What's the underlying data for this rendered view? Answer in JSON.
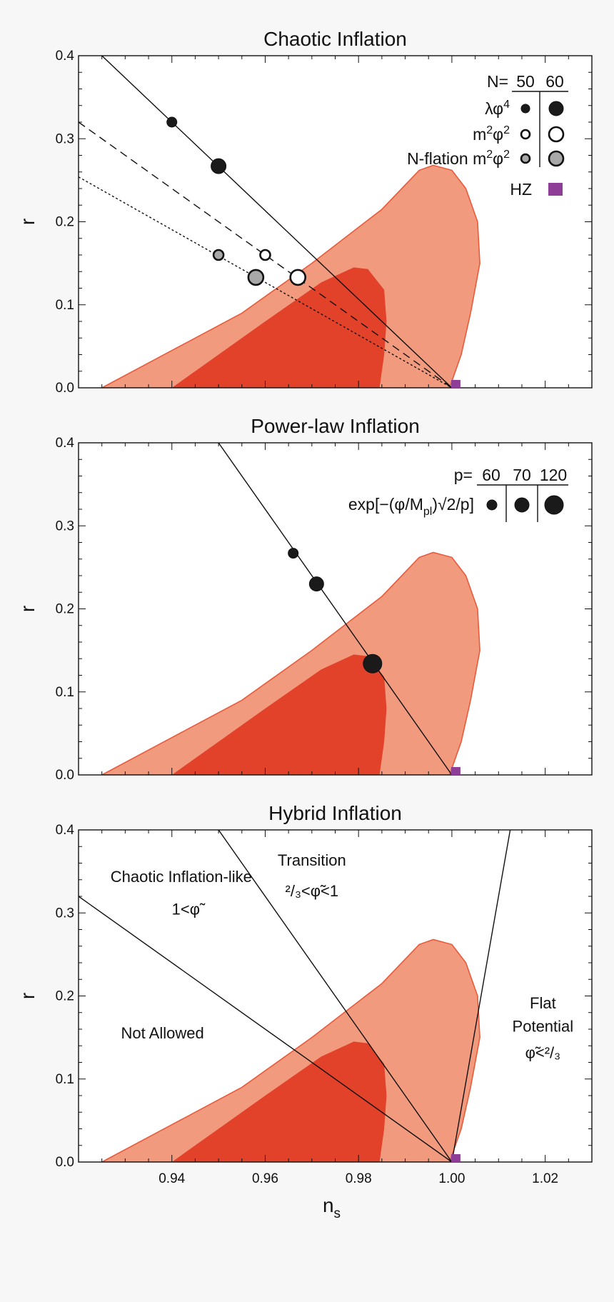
{
  "chart_data": [
    {
      "type": "scatter",
      "title": "Chaotic Inflation",
      "ylabel": "r",
      "xlim": [
        0.92,
        1.03
      ],
      "ylim": [
        0,
        0.4
      ],
      "yticks": [
        "0.0",
        "0.1",
        "0.2",
        "0.3",
        "0.4"
      ],
      "regions": [
        {
          "level": "outer",
          "color": "#f29a7e"
        },
        {
          "level": "inner",
          "color": "#e2412a"
        }
      ],
      "lines": [
        {
          "style": "solid",
          "points": [
            [
              0.925,
              0.4
            ],
            [
              1.0,
              0.0
            ]
          ]
        },
        {
          "style": "dashed",
          "points": [
            [
              0.92,
              0.32
            ],
            [
              1.0,
              0.0
            ]
          ]
        },
        {
          "style": "dotted",
          "points": [
            [
              0.92,
              0.254
            ],
            [
              1.0,
              0.0
            ]
          ]
        }
      ],
      "legend": {
        "header": "N=",
        "columns": [
          "50",
          "60"
        ],
        "rows": [
          {
            "label": "λφ",
            "sup": "4",
            "style": "black"
          },
          {
            "label": "m",
            "sup": "2",
            "label2": "φ",
            "sup2": "2",
            "style": "white"
          },
          {
            "label": "N-flation m",
            "sup": "2",
            "label2": "φ",
            "sup2": "2",
            "style": "gray"
          }
        ],
        "hz_label": "HZ"
      },
      "points": [
        {
          "model": "λφ4",
          "N": 50,
          "x": 0.94,
          "y": 0.32,
          "style": "black"
        },
        {
          "model": "λφ4",
          "N": 60,
          "x": 0.95,
          "y": 0.267,
          "style": "black"
        },
        {
          "model": "m2φ2",
          "N": 50,
          "x": 0.96,
          "y": 0.16,
          "style": "white"
        },
        {
          "model": "m2φ2",
          "N": 60,
          "x": 0.967,
          "y": 0.133,
          "style": "white"
        },
        {
          "model": "N-flation m2φ2",
          "N": 50,
          "x": 0.95,
          "y": 0.16,
          "style": "gray"
        },
        {
          "model": "N-flation m2φ2",
          "N": 60,
          "x": 0.958,
          "y": 0.133,
          "style": "gray"
        },
        {
          "model": "HZ",
          "x": 1.0,
          "y": 0.0,
          "style": "square"
        }
      ]
    },
    {
      "type": "scatter",
      "title": "Power-law Inflation",
      "ylabel": "r",
      "xlim": [
        0.92,
        1.03
      ],
      "ylim": [
        0,
        0.4
      ],
      "yticks": [
        "0.0",
        "0.1",
        "0.2",
        "0.3",
        "0.4"
      ],
      "lines": [
        {
          "style": "solid",
          "points": [
            [
              0.95,
              0.4
            ],
            [
              1.0,
              0.0
            ]
          ]
        }
      ],
      "legend": {
        "header": "p=",
        "columns": [
          "60",
          "70",
          "120"
        ],
        "label_pre": "exp[−(φ/M",
        "label_sub": "pl",
        "label_post": ")√2/p]"
      },
      "points": [
        {
          "p": 60,
          "x": 0.966,
          "y": 0.267,
          "style": "black"
        },
        {
          "p": 70,
          "x": 0.971,
          "y": 0.23,
          "style": "black"
        },
        {
          "p": 120,
          "x": 0.983,
          "y": 0.134,
          "style": "black"
        },
        {
          "model": "HZ",
          "x": 1.0,
          "y": 0.0,
          "style": "square"
        }
      ]
    },
    {
      "type": "scatter",
      "title": "Hybrid Inflation",
      "ylabel": "r",
      "xlabel": "n",
      "xlabel_sub": "s",
      "xlim": [
        0.92,
        1.03
      ],
      "ylim": [
        0,
        0.4
      ],
      "xticks": [
        "0.94",
        "0.96",
        "0.98",
        "1.00",
        "1.02"
      ],
      "yticks": [
        "0.0",
        "0.1",
        "0.2",
        "0.3",
        "0.4"
      ],
      "lines": [
        {
          "style": "solid",
          "points": [
            [
              0.92,
              0.32
            ],
            [
              1.0,
              0.0
            ]
          ]
        },
        {
          "style": "solid",
          "points": [
            [
              0.95,
              0.4
            ],
            [
              1.0,
              0.0
            ]
          ]
        },
        {
          "style": "solid",
          "points": [
            [
              1.0,
              0.0
            ],
            [
              1.0125,
              0.4
            ]
          ]
        }
      ],
      "annotations": [
        {
          "text": "Chaotic Inflation-like",
          "x": 0.942,
          "y": 0.337
        },
        {
          "text": "1<φ̃",
          "x": 0.943,
          "y": 0.298
        },
        {
          "text": "Transition",
          "x": 0.97,
          "y": 0.357
        },
        {
          "text": "²/₃<φ̃<1",
          "x": 0.97,
          "y": 0.32
        },
        {
          "text": "Not Allowed",
          "x": 0.938,
          "y": 0.149
        },
        {
          "text": "Flat",
          "x": 1.0195,
          "y": 0.185
        },
        {
          "text": "Potential",
          "x": 1.0195,
          "y": 0.157
        },
        {
          "text": "φ̃<²/₃",
          "x": 1.0195,
          "y": 0.125
        }
      ],
      "points": [
        {
          "model": "HZ",
          "x": 1.0,
          "y": 0.0,
          "style": "square"
        }
      ]
    }
  ]
}
